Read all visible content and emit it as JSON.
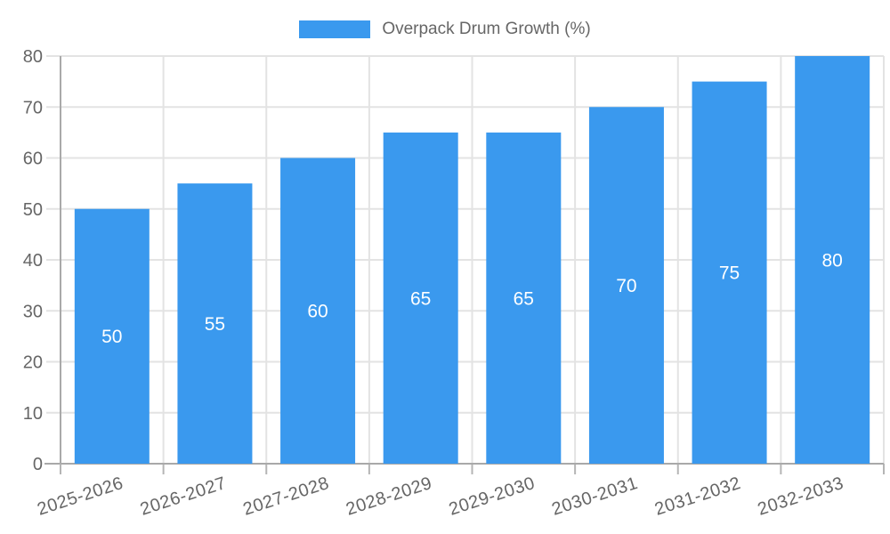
{
  "chart_data": {
    "type": "bar",
    "title": "Overpack Drum Growth (%)",
    "categories": [
      "2025-2026",
      "2026-2027",
      "2027-2028",
      "2028-2029",
      "2029-2030",
      "2030-2031",
      "2031-2032",
      "2032-2033"
    ],
    "values": [
      50,
      55,
      60,
      65,
      65,
      70,
      75,
      80
    ],
    "xlabel": "",
    "ylabel": "",
    "ylim": [
      0,
      80
    ],
    "ytick_step": 10,
    "ytick_labels": [
      "0",
      "10",
      "20",
      "30",
      "40",
      "50",
      "60",
      "70",
      "80"
    ],
    "grid": true,
    "legend_position": "top-center",
    "bar_color": "#3A99EE",
    "bar_label_color": "#ffffff",
    "axis_text_color": "#666666",
    "grid_color": "#e3e3e3",
    "tick_color": "#b5b5b5",
    "axis_line_color": "#a9a9a9"
  }
}
